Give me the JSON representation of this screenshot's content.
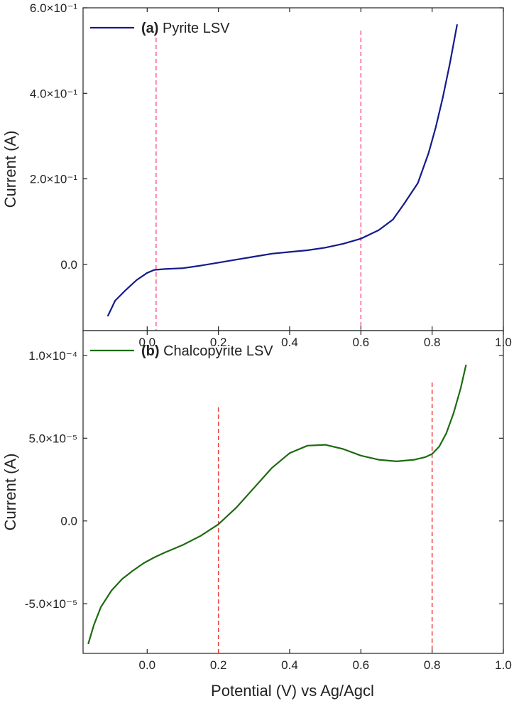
{
  "chart_data": [
    {
      "id": "a",
      "type": "line",
      "title": "",
      "xlabel": "",
      "ylabel": "Current (A)",
      "xlim": [
        -0.18,
        1.0
      ],
      "ylim": [
        -0.155,
        0.6
      ],
      "x_ticks": [
        0.0,
        0.2,
        0.4,
        0.6,
        0.8,
        1.0
      ],
      "x_tick_labels": [
        "0.0",
        "0.2",
        "0.4",
        "0.6",
        "0.8",
        "1.0"
      ],
      "y_ticks": [
        0.0,
        0.2,
        0.4,
        0.6
      ],
      "y_tick_labels": [
        "0.0",
        "2.0×10⁻¹",
        "4.0×10⁻¹",
        "6.0×10⁻¹"
      ],
      "legend": {
        "position": "top-left",
        "label_bold": "(a)",
        "label_text": "Pyrite LSV"
      },
      "series": [
        {
          "name": "Pyrite LSV",
          "color": "#141a8c",
          "x": [
            -0.11,
            -0.09,
            -0.06,
            -0.03,
            0.0,
            0.02,
            0.05,
            0.1,
            0.15,
            0.2,
            0.25,
            0.3,
            0.35,
            0.4,
            0.45,
            0.5,
            0.55,
            0.6,
            0.65,
            0.69,
            0.72,
            0.76,
            0.79,
            0.81,
            0.83,
            0.85,
            0.87
          ],
          "y": [
            -0.12,
            -0.085,
            -0.06,
            -0.037,
            -0.02,
            -0.013,
            -0.011,
            -0.009,
            -0.003,
            0.004,
            0.011,
            0.018,
            0.025,
            0.029,
            0.033,
            0.039,
            0.048,
            0.06,
            0.08,
            0.105,
            0.14,
            0.19,
            0.26,
            0.32,
            0.39,
            0.47,
            0.56
          ]
        }
      ],
      "reference_lines": [
        {
          "x": 0.025,
          "color": "#ff5a8a",
          "style": "dashed"
        },
        {
          "x": 0.6,
          "color": "#ff5a8a",
          "style": "dashed"
        }
      ]
    },
    {
      "id": "b",
      "type": "line",
      "title": "",
      "xlabel": "Potential (V) vs Ag/Agcl",
      "ylabel": "Current (A)",
      "xlim": [
        -0.18,
        1.0
      ],
      "ylim": [
        -8e-05,
        0.000115
      ],
      "x_ticks": [
        0.0,
        0.2,
        0.4,
        0.6,
        0.8,
        1.0
      ],
      "x_tick_labels": [
        "0.0",
        "0.2",
        "0.4",
        "0.6",
        "0.8",
        "1.0"
      ],
      "y_ticks": [
        -5e-05,
        0.0,
        5e-05,
        0.0001
      ],
      "y_tick_labels": [
        "-5.0×10⁻⁵",
        "0.0",
        "5.0×10⁻⁵",
        "1.0×10⁻⁴"
      ],
      "legend": {
        "position": "top-left",
        "label_bold": "(b)",
        "label_text": "Chalcopyrite LSV"
      },
      "series": [
        {
          "name": "Chalcopyrite LSV",
          "color": "#1d6b10",
          "x": [
            -0.165,
            -0.15,
            -0.13,
            -0.1,
            -0.07,
            -0.04,
            -0.01,
            0.02,
            0.05,
            0.1,
            0.15,
            0.2,
            0.25,
            0.3,
            0.35,
            0.4,
            0.45,
            0.5,
            0.55,
            0.6,
            0.65,
            0.7,
            0.75,
            0.78,
            0.8,
            0.82,
            0.84,
            0.86,
            0.88,
            0.895
          ],
          "y": [
            -7.4e-05,
            -6.3e-05,
            -5.2e-05,
            -4.2e-05,
            -3.5e-05,
            -3e-05,
            -2.55e-05,
            -2.2e-05,
            -1.9e-05,
            -1.45e-05,
            -9e-06,
            -2e-06,
            8e-06,
            2e-05,
            3.2e-05,
            4.1e-05,
            4.55e-05,
            4.6e-05,
            4.35e-05,
            3.95e-05,
            3.7e-05,
            3.6e-05,
            3.7e-05,
            3.85e-05,
            4.05e-05,
            4.5e-05,
            5.3e-05,
            6.5e-05,
            8e-05,
            9.4e-05
          ]
        }
      ],
      "reference_lines": [
        {
          "x": 0.2,
          "color": "#e8403a",
          "style": "dashed"
        },
        {
          "x": 0.8,
          "color": "#e8403a",
          "style": "dashed"
        }
      ]
    }
  ]
}
